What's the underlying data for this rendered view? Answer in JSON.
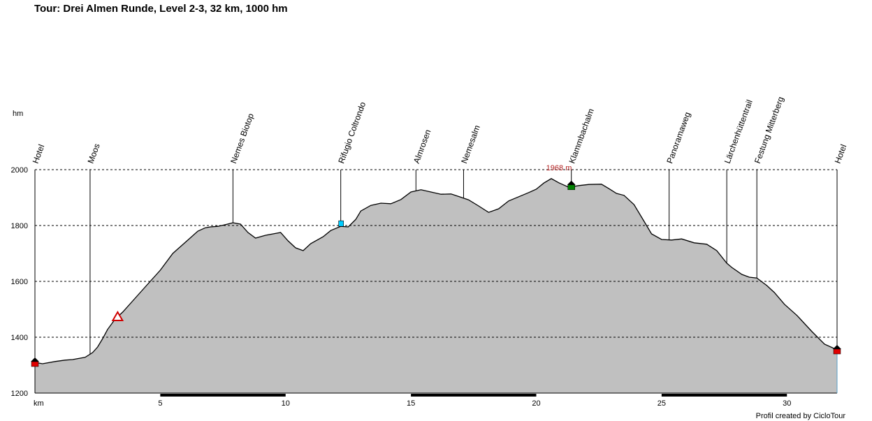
{
  "title": "Tour: Drei Almen Runde, Level 2-3, 32 km, 1000 hm",
  "credit": "Profil created by CicloTour",
  "chart_data": {
    "type": "area",
    "ylabel": "hm",
    "xlabel": "km",
    "xlim": [
      0,
      32
    ],
    "ylim": [
      1200,
      2000
    ],
    "x_ticks": [
      5,
      10,
      15,
      20,
      25,
      30
    ],
    "y_ticks": [
      1200,
      1400,
      1600,
      1800,
      2000
    ],
    "grid": true,
    "fill_color": "#c0c0c0",
    "peak_label": "1968 m",
    "peak": {
      "x": 20.6,
      "y": 1968
    },
    "series": [
      {
        "x": [
          0,
          0.3,
          0.8,
          1.2,
          1.5,
          2.0,
          2.3,
          2.5,
          2.7,
          2.9,
          3.2,
          3.5,
          4.0,
          4.5,
          5.0,
          5.5,
          6.0,
          6.5,
          6.8,
          7.0,
          7.3,
          7.6,
          7.9,
          8.2,
          8.5,
          8.8,
          9.2,
          9.5,
          9.8,
          10.1,
          10.4,
          10.7,
          11.0,
          11.5,
          11.8,
          12.2,
          12.5,
          12.8,
          13.0,
          13.4,
          13.8,
          14.2,
          14.6,
          15.0,
          15.4,
          15.8,
          16.2,
          16.6,
          16.9,
          17.3,
          17.7,
          18.1,
          18.5,
          18.9,
          19.3,
          19.7,
          20.0,
          20.3,
          20.6,
          20.9,
          21.3,
          21.7,
          22.1,
          22.6,
          22.9,
          23.2,
          23.5,
          23.9,
          24.3,
          24.6,
          25.0,
          25.4,
          25.8,
          26.3,
          26.8,
          27.2,
          27.6,
          27.8,
          28.2,
          28.5,
          28.8,
          29.2,
          29.5,
          29.9,
          30.4,
          31.0,
          31.5,
          32.0
        ],
        "y": [
          1310,
          1305,
          1313,
          1318,
          1320,
          1328,
          1345,
          1365,
          1395,
          1428,
          1465,
          1490,
          1540,
          1590,
          1640,
          1700,
          1740,
          1780,
          1792,
          1795,
          1797,
          1803,
          1810,
          1805,
          1775,
          1755,
          1765,
          1770,
          1775,
          1745,
          1720,
          1710,
          1735,
          1760,
          1782,
          1797,
          1795,
          1822,
          1852,
          1872,
          1880,
          1878,
          1893,
          1920,
          1928,
          1920,
          1912,
          1913,
          1904,
          1892,
          1870,
          1847,
          1860,
          1888,
          1903,
          1918,
          1930,
          1952,
          1968,
          1953,
          1937,
          1943,
          1947,
          1948,
          1932,
          1915,
          1908,
          1875,
          1815,
          1770,
          1750,
          1748,
          1752,
          1738,
          1733,
          1710,
          1665,
          1650,
          1625,
          1615,
          1612,
          1585,
          1560,
          1518,
          1478,
          1420,
          1375,
          1355
        ]
      }
    ],
    "waypoints": [
      {
        "km": 0.0,
        "label": "Hotel",
        "alt": 1310,
        "marker": "red-house"
      },
      {
        "km": 2.2,
        "label": "Moos",
        "alt": null,
        "marker": "none"
      },
      {
        "km": 3.3,
        "label": "",
        "alt": 1465,
        "marker": "warning-triangle"
      },
      {
        "km": 7.9,
        "label": "Nemes Biotop",
        "alt": null,
        "marker": "none"
      },
      {
        "km": 12.2,
        "label": "Rifugio Coltrondo",
        "alt": 1797,
        "marker": "cyan-mug"
      },
      {
        "km": 15.2,
        "label": "Almrosen",
        "alt": null,
        "marker": "none"
      },
      {
        "km": 17.1,
        "label": "Nemesalm",
        "alt": null,
        "marker": "none"
      },
      {
        "km": 21.4,
        "label": "Klammbachalm",
        "alt": 1943,
        "marker": "green-house"
      },
      {
        "km": 25.3,
        "label": "Panoramaweg",
        "alt": null,
        "marker": "none"
      },
      {
        "km": 27.6,
        "label": "Lärchenhüttentrail",
        "alt": null,
        "marker": "none"
      },
      {
        "km": 28.8,
        "label": "Festung Mitterberg",
        "alt": null,
        "marker": "none"
      },
      {
        "km": 32.0,
        "label": "Hotel",
        "alt": 1355,
        "marker": "red-house"
      }
    ]
  }
}
